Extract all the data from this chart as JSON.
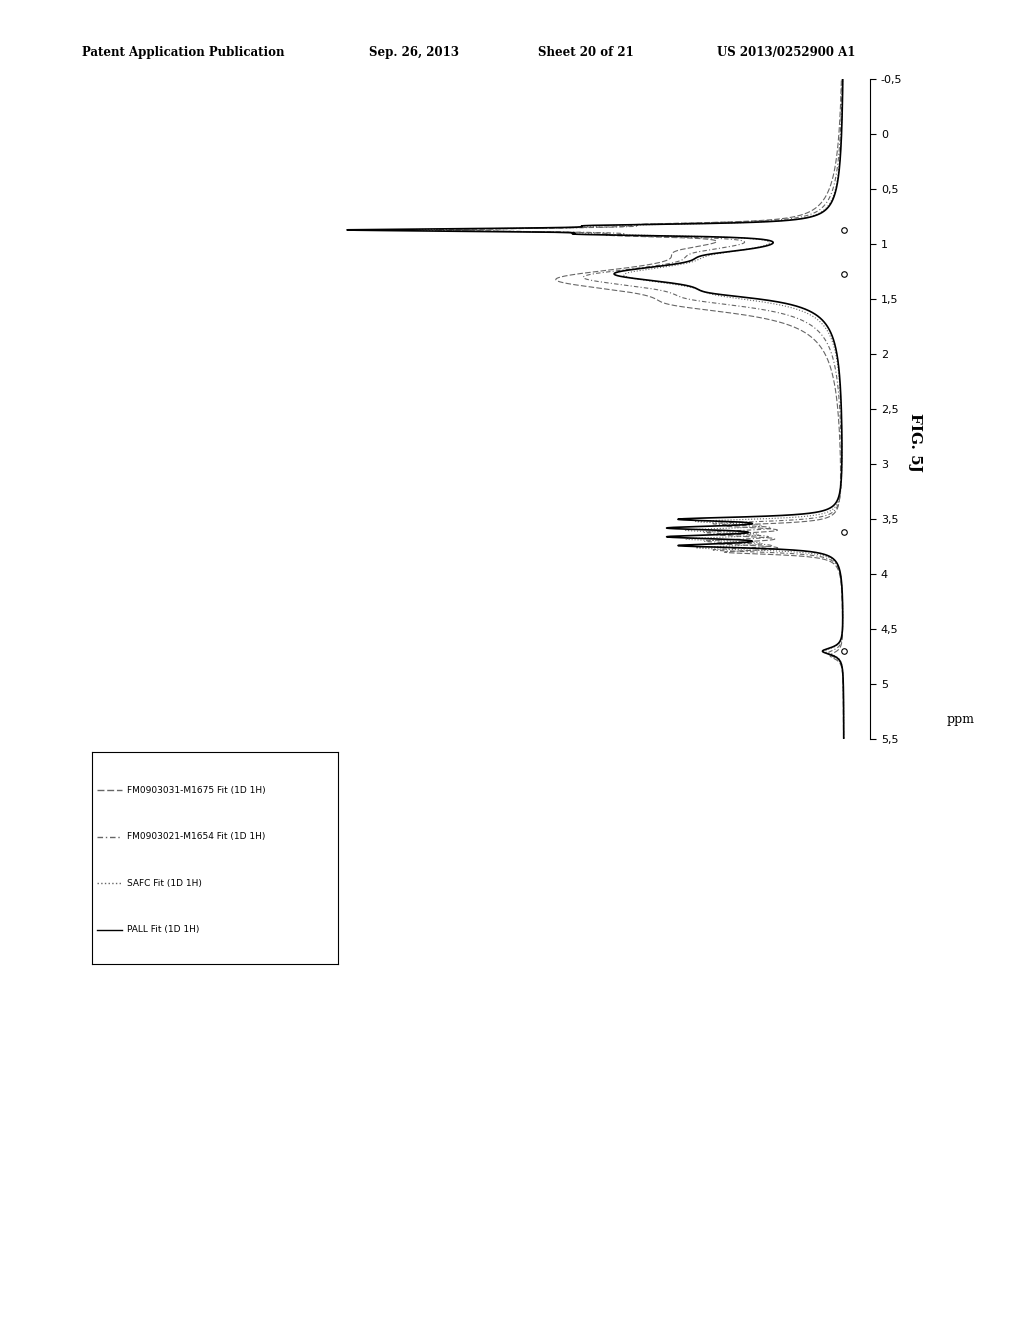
{
  "title_header": "Patent Application Publication",
  "title_date": "Sep. 26, 2013",
  "title_sheet": "Sheet 20 of 21",
  "title_patent": "US 2013/0252900 A1",
  "fig_label": "FIG. 5J",
  "x_label": "ppm",
  "ppm_min": -0.5,
  "ppm_max": 5.5,
  "ppm_ticks": [
    -0.5,
    0,
    0.5,
    1,
    1.5,
    2,
    2.5,
    3,
    3.5,
    4,
    4.5,
    5,
    5.5
  ],
  "ppm_tick_labels": [
    "-0,5",
    "0",
    "0,5",
    "1",
    "1,5",
    "2",
    "2,5",
    "3",
    "3,5",
    "4",
    "4,5",
    "5",
    "5,5"
  ],
  "legend_entries": [
    {
      "label": "FM0903031-M1675 Fit (1D 1H)",
      "linestyle": "dashdot"
    },
    {
      "label": "FM0903021-M1654 Fit (1D 1H)",
      "linestyle": "dashdot2"
    },
    {
      "label": "SAFC Fit (1D 1H)",
      "linestyle": "dotted"
    },
    {
      "label": "PALL Fit (1D 1H)",
      "linestyle": "solid"
    }
  ],
  "circle_ppm": [
    0.87,
    1.27,
    3.62,
    4.7
  ],
  "background_color": "#ffffff",
  "line_color_gray": "#666666",
  "line_color_black": "#000000"
}
